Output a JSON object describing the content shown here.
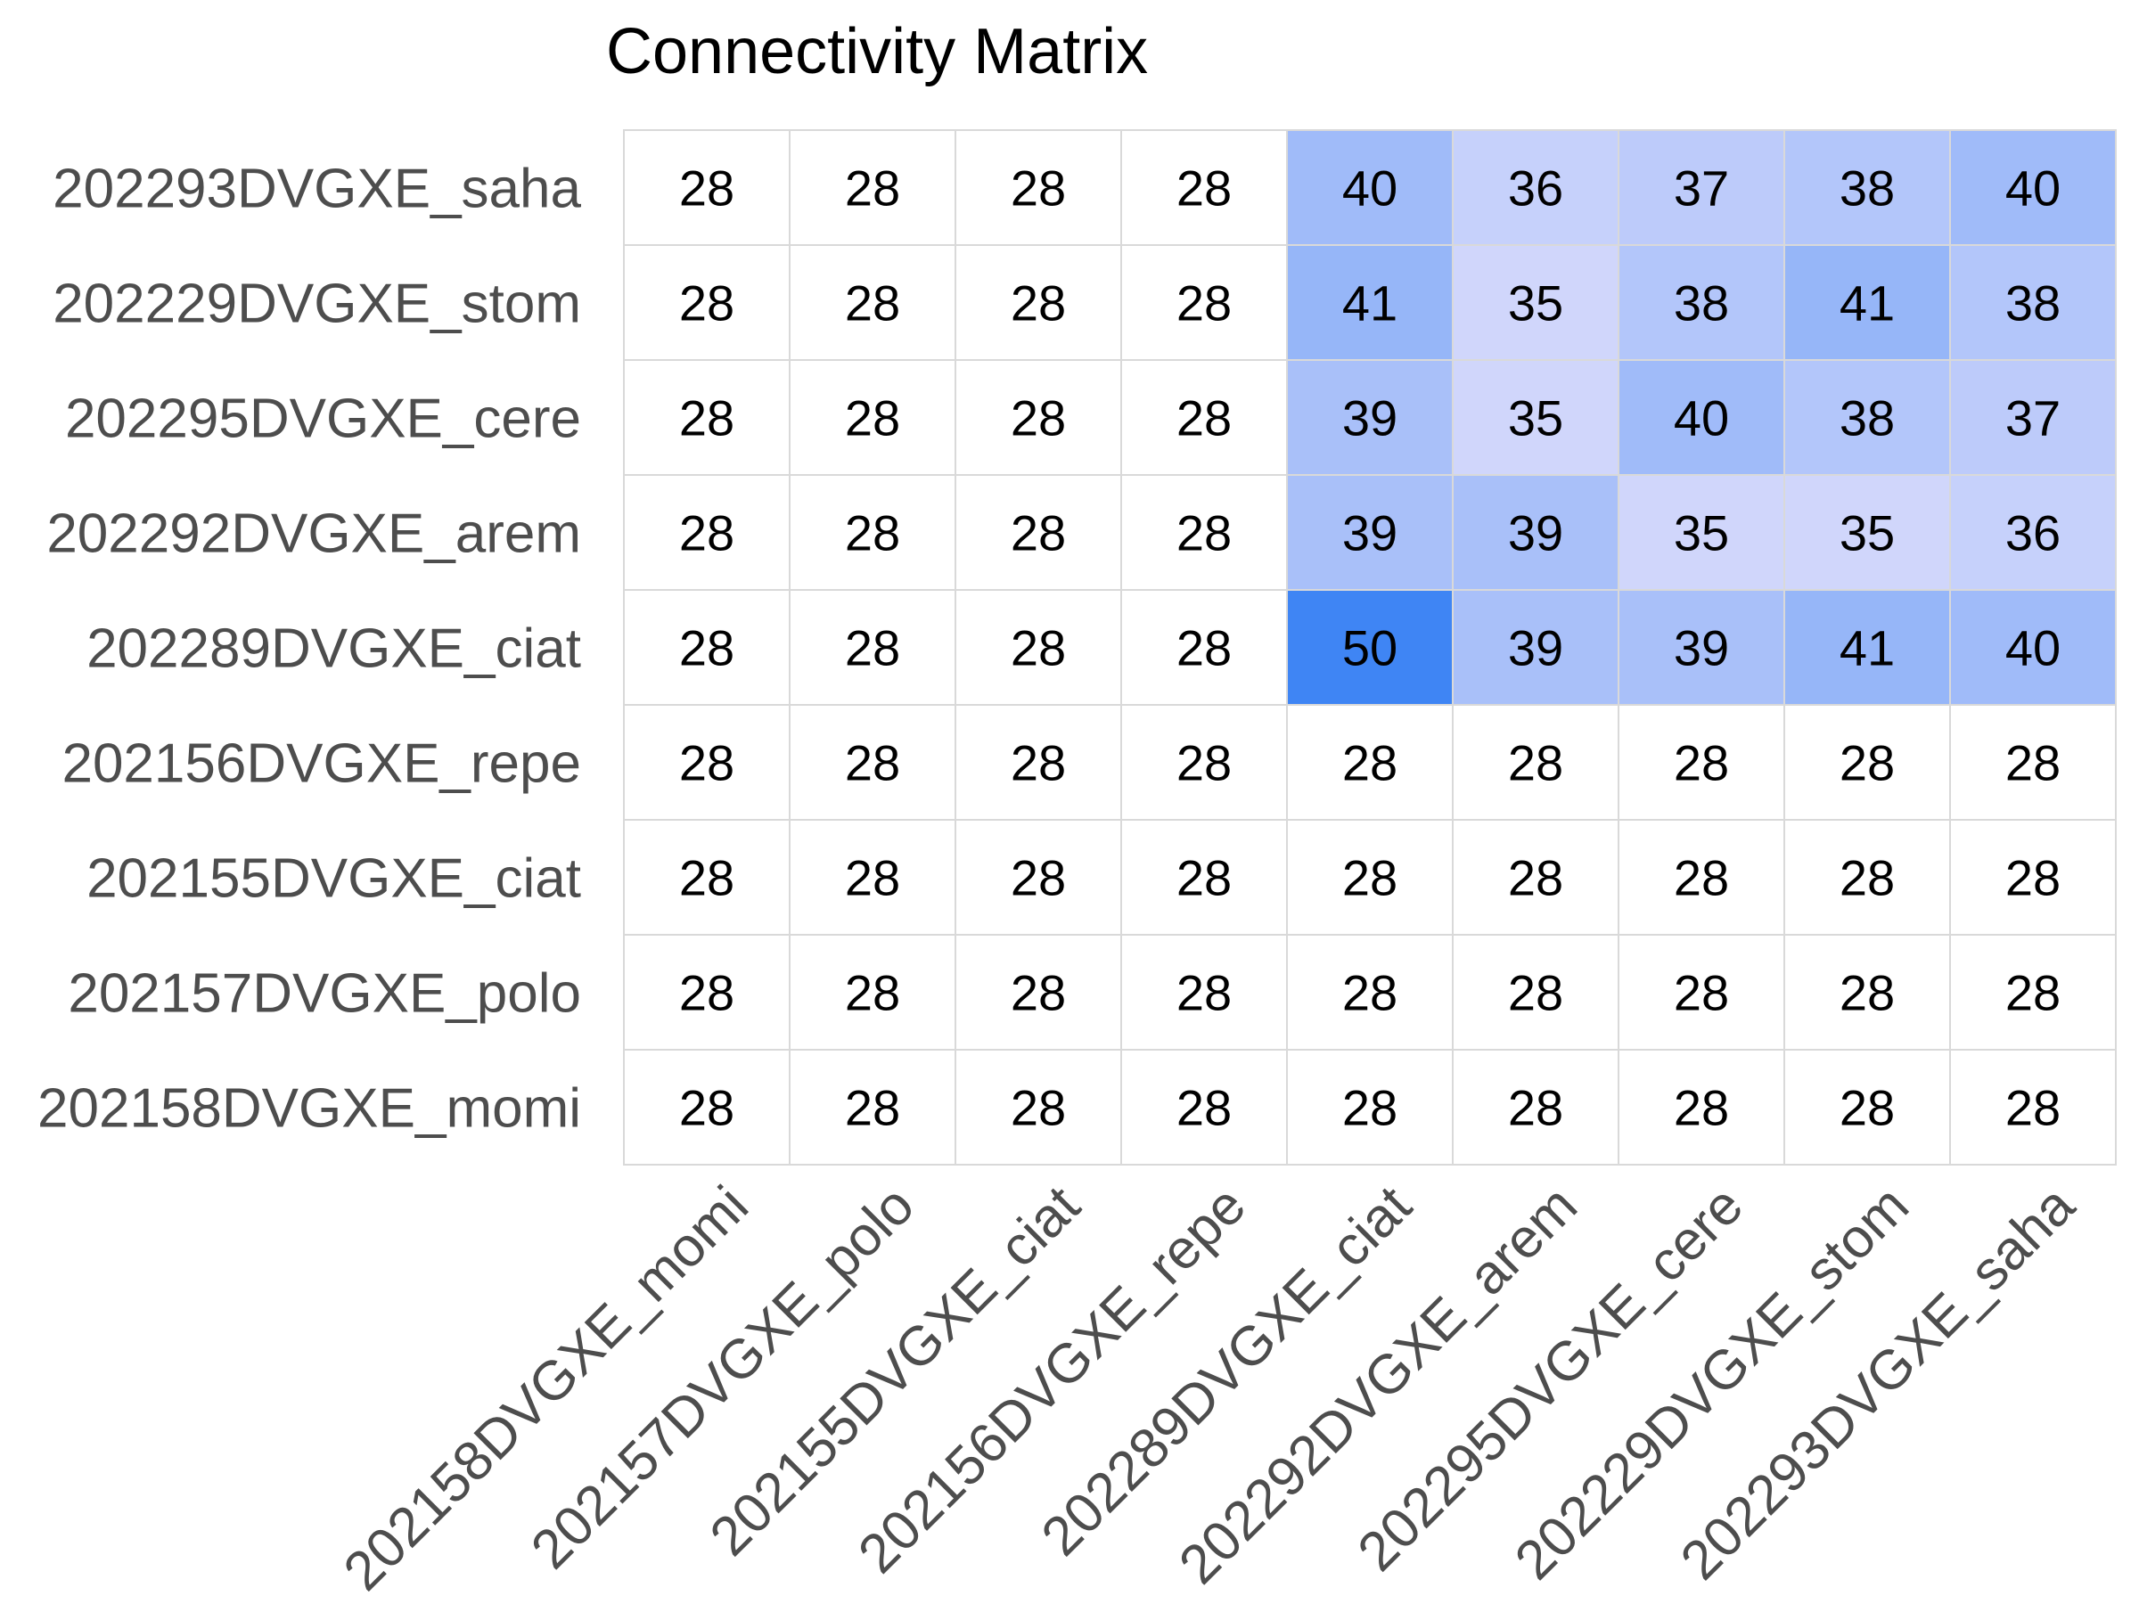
{
  "chart_data": {
    "type": "heatmap",
    "title": "Connectivity Matrix",
    "xlabel": "",
    "ylabel": "",
    "rows": [
      "202293DVGXE_saha",
      "202229DVGXE_stom",
      "202295DVGXE_cere",
      "202292DVGXE_arem",
      "202289DVGXE_ciat",
      "202156DVGXE_repe",
      "202155DVGXE_ciat",
      "202157DVGXE_polo",
      "202158DVGXE_momi"
    ],
    "columns": [
      "202158DVGXE_momi",
      "202157DVGXE_polo",
      "202155DVGXE_ciat",
      "202156DVGXE_repe",
      "202289DVGXE_ciat",
      "202292DVGXE_arem",
      "202295DVGXE_cere",
      "202229DVGXE_stom",
      "202293DVGXE_saha"
    ],
    "values": [
      [
        28,
        28,
        28,
        28,
        40,
        36,
        37,
        38,
        40
      ],
      [
        28,
        28,
        28,
        28,
        41,
        35,
        38,
        41,
        38
      ],
      [
        28,
        28,
        28,
        28,
        39,
        35,
        40,
        38,
        37
      ],
      [
        28,
        28,
        28,
        28,
        39,
        39,
        35,
        35,
        36
      ],
      [
        28,
        28,
        28,
        28,
        50,
        39,
        39,
        41,
        40
      ],
      [
        28,
        28,
        28,
        28,
        28,
        28,
        28,
        28,
        28
      ],
      [
        28,
        28,
        28,
        28,
        28,
        28,
        28,
        28,
        28
      ],
      [
        28,
        28,
        28,
        28,
        28,
        28,
        28,
        28,
        28
      ],
      [
        28,
        28,
        28,
        28,
        28,
        28,
        28,
        28,
        28
      ]
    ],
    "color_scale": {
      "min_value": 28,
      "max_value": 50,
      "low_color": "#ffffff",
      "light_color": "#d0d6fb",
      "high_color": "#3f85f4"
    },
    "grid_color": "#d9d9d9",
    "legend": "none"
  }
}
